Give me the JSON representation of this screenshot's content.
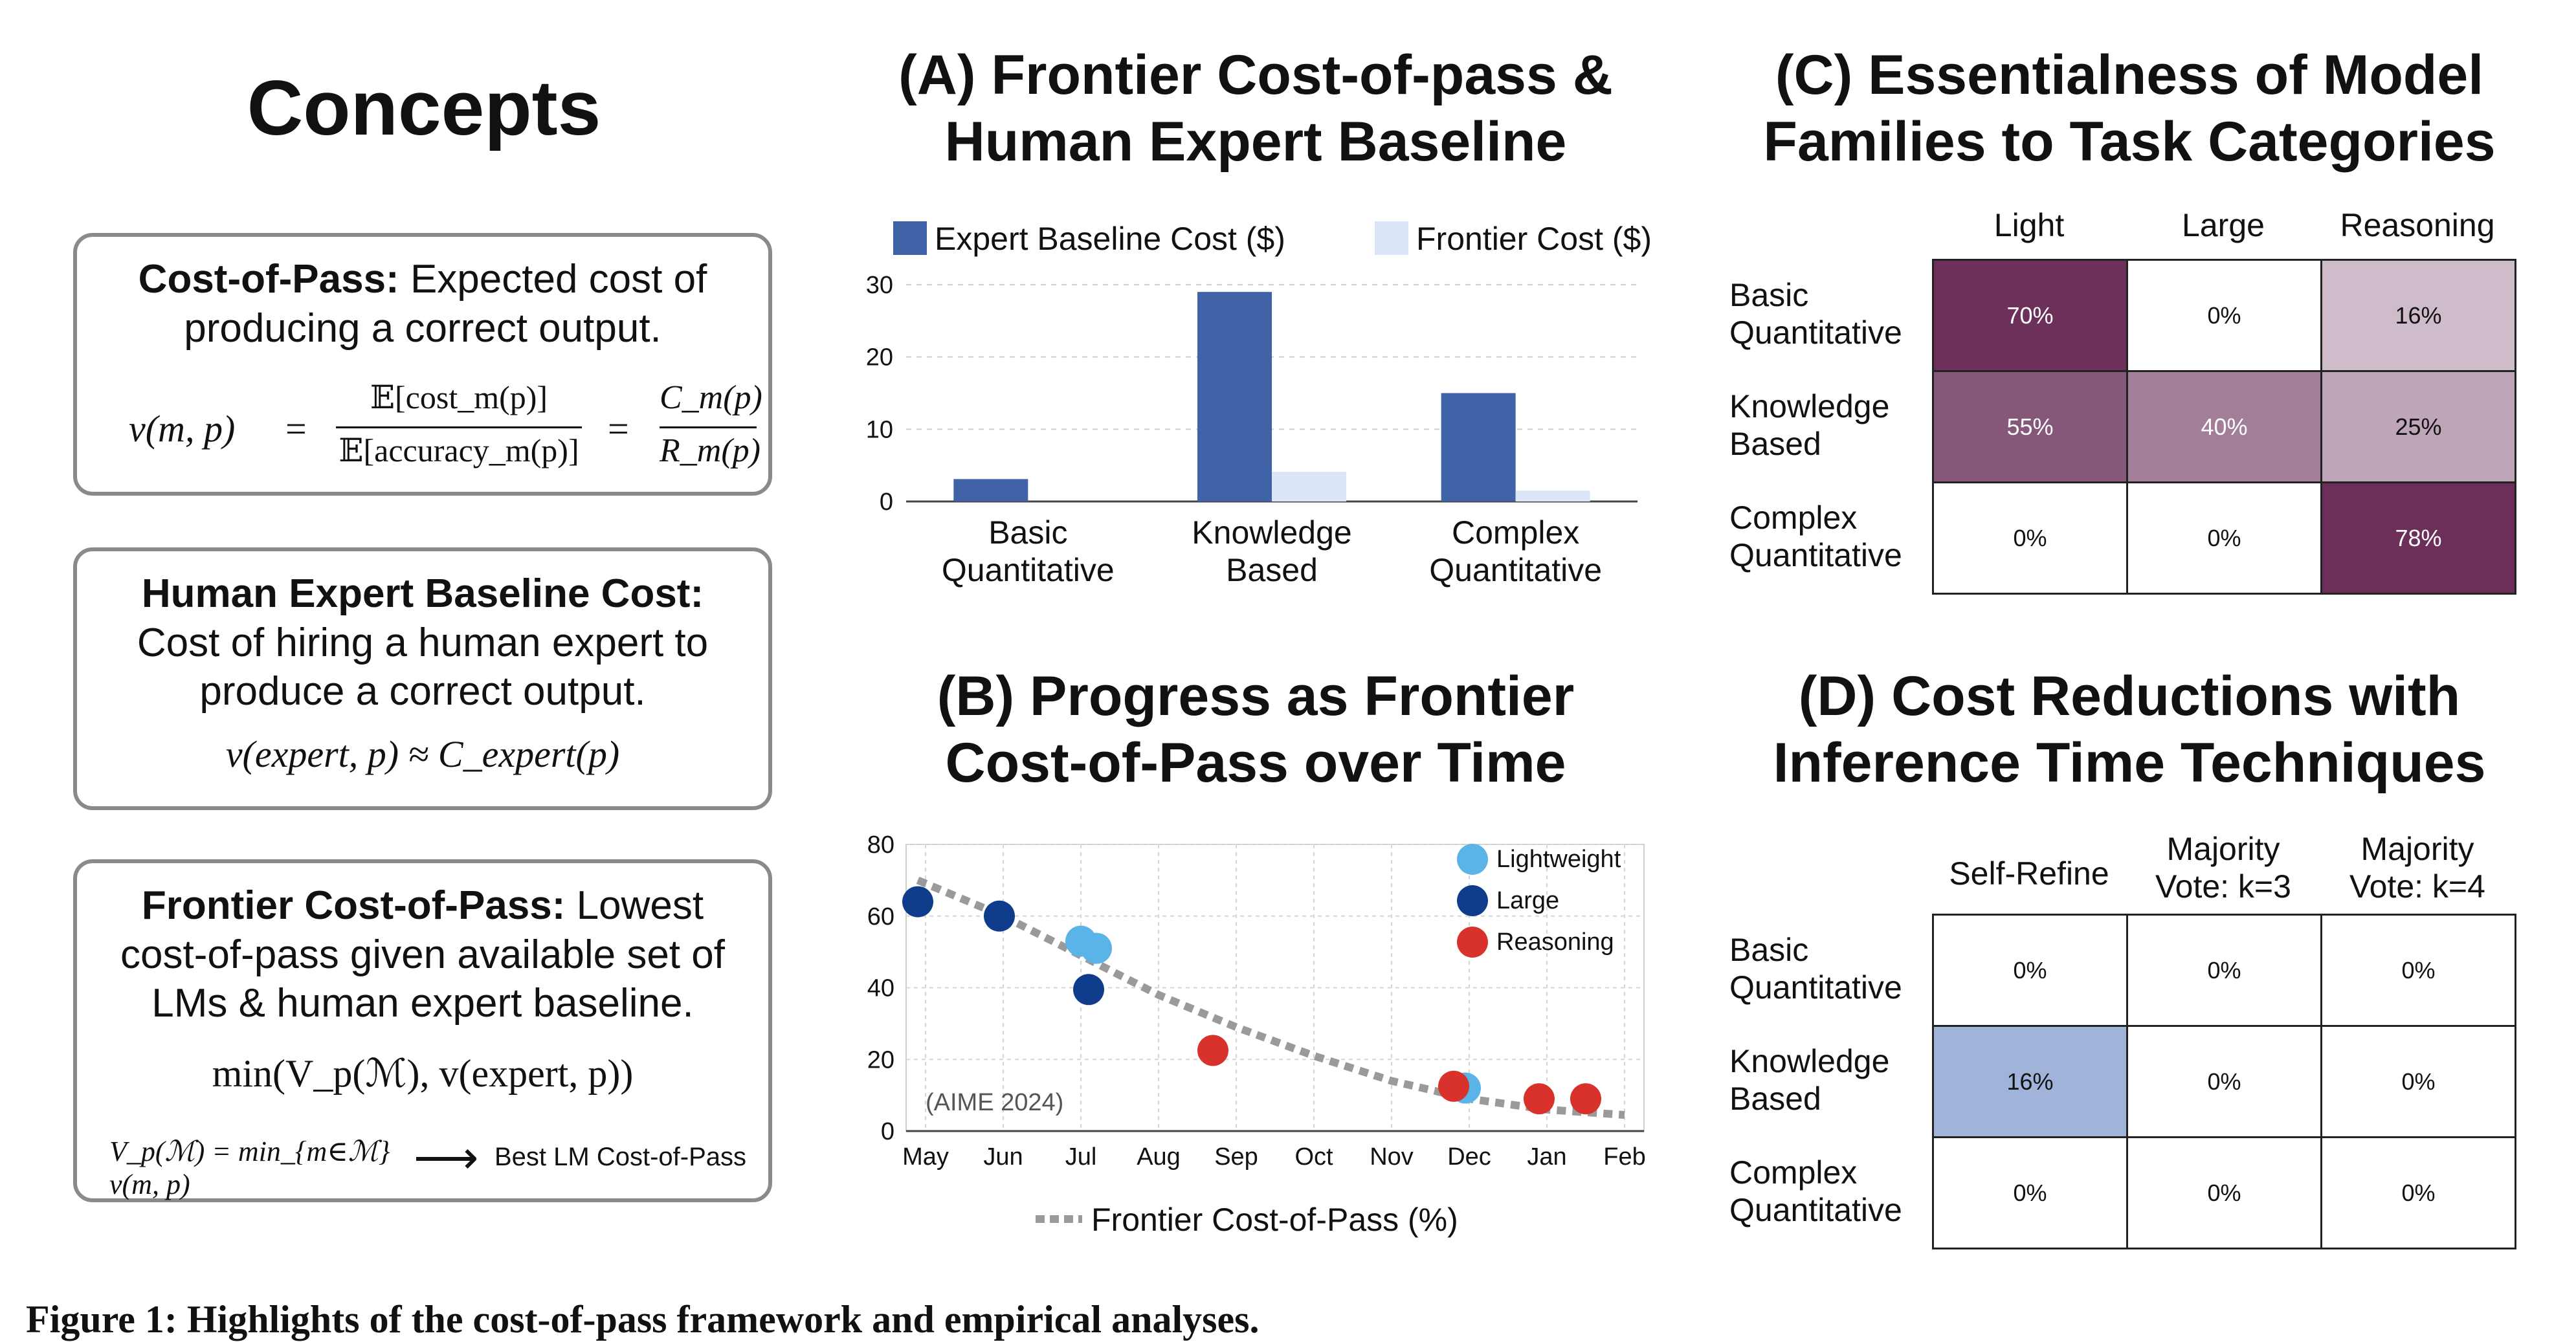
{
  "concepts": {
    "title": "Concepts",
    "box1": {
      "heading": "Cost-of-Pass:",
      "text": "Expected cost of producing a correct output.",
      "lhs": "v(m, p)",
      "num1": "𝔼[cost_m(p)]",
      "den1": "𝔼[accuracy_m(p)]",
      "num2": "C_m(p)",
      "den2": "R_m(p)"
    },
    "box2": {
      "heading": "Human Expert Baseline Cost:",
      "text": "Cost of hiring a human expert to produce a correct output.",
      "formula": "v(expert, p) ≈ C_expert(p)"
    },
    "box3": {
      "heading": "Frontier Cost-of-Pass:",
      "text": "Lowest cost-of-pass given available set of LMs & human expert baseline.",
      "formula": "min(V_p(ℳ), v(expert, p))",
      "def": "V_p(ℳ) = min_{m∈ℳ} v(m, p)",
      "arrow_label": "Best LM Cost-of-Pass"
    }
  },
  "panelA": {
    "title_line1": "(A) Frontier Cost-of-pass &",
    "title_line2": "Human Expert Baseline"
  },
  "panelB": {
    "title_line1": "(B) Progress as Frontier",
    "title_line2": "Cost-of-Pass over Time"
  },
  "panelC": {
    "title_line1": "(C) Essentialness of Model",
    "title_line2": "Families to Task Categories",
    "columns": [
      "Light",
      "Large",
      "Reasoning"
    ],
    "rows": [
      {
        "label_line1": "Basic",
        "label_line2": "Quantitative",
        "cells": [
          "70%",
          "0%",
          "16%"
        ],
        "values": [
          70,
          0,
          16
        ]
      },
      {
        "label_line1": "Knowledge",
        "label_line2": "Based",
        "cells": [
          "55%",
          "40%",
          "25%"
        ],
        "values": [
          55,
          40,
          25
        ]
      },
      {
        "label_line1": "Complex",
        "label_line2": "Quantitative",
        "cells": [
          "0%",
          "0%",
          "78%"
        ],
        "values": [
          0,
          0,
          78
        ]
      }
    ],
    "color": "#6b2f5a"
  },
  "panelD": {
    "title_line1": "(D) Cost Reductions with",
    "title_line2": "Inference Time Techniques",
    "columns": [
      {
        "line1": "Self-Refine",
        "line2": ""
      },
      {
        "line1": "Majority",
        "line2": "Vote: k=3"
      },
      {
        "line1": "Majority",
        "line2": "Vote: k=4"
      }
    ],
    "rows": [
      {
        "label_line1": "Basic",
        "label_line2": "Quantitative",
        "cells": [
          "0%",
          "0%",
          "0%"
        ],
        "values": [
          0,
          0,
          0
        ]
      },
      {
        "label_line1": "Knowledge",
        "label_line2": "Based",
        "cells": [
          "16%",
          "0%",
          "0%"
        ],
        "values": [
          16,
          0,
          0
        ]
      },
      {
        "label_line1": "Complex",
        "label_line2": "Quantitative",
        "cells": [
          "0%",
          "0%",
          "0%"
        ],
        "values": [
          0,
          0,
          0
        ]
      }
    ],
    "color": "#9fb4d8"
  },
  "caption": "Figure 1: Highlights of the cost-of-pass framework and empirical analyses.",
  "chart_data": [
    {
      "type": "bar",
      "categories": [
        "Basic\nQuantitative",
        "Knowledge\nBased",
        "Complex\nQuantitative"
      ],
      "series": [
        {
          "name": "Expert Baseline Cost ($)",
          "values": [
            3.1,
            29,
            15
          ],
          "color": "#3f63a6"
        },
        {
          "name": "Frontier Cost ($)",
          "values": [
            0,
            4.1,
            1.5
          ],
          "color": "#dbe5f7"
        }
      ],
      "ylim": [
        0,
        30
      ],
      "yticks": [
        0,
        10,
        20,
        30
      ],
      "grid": true,
      "legend": "top"
    },
    {
      "type": "scatter",
      "x_ticks": [
        "May",
        "Jun",
        "Jul",
        "Aug",
        "Sep",
        "Oct",
        "Nov",
        "Dec",
        "Jan",
        "Feb"
      ],
      "ylim": [
        0,
        80
      ],
      "yticks": [
        0,
        20,
        40,
        60,
        80
      ],
      "annotation": "(AIME 2024)",
      "series": [
        {
          "name": "Lightweight",
          "color": "#5ab4e8",
          "points": [
            [
              2.0,
              53
            ],
            [
              2.2,
              51
            ],
            [
              6.95,
              12
            ]
          ]
        },
        {
          "name": "Large",
          "color": "#0f3d8c",
          "points": [
            [
              -0.1,
              64
            ],
            [
              0.95,
              60
            ],
            [
              2.1,
              39.5
            ]
          ]
        },
        {
          "name": "Reasoning",
          "color": "#d9312b",
          "points": [
            [
              3.7,
              22.5
            ],
            [
              6.8,
              12.5
            ],
            [
              7.9,
              9
            ],
            [
              8.5,
              9
            ]
          ]
        }
      ],
      "trend": {
        "name": "Frontier Cost-of-Pass (%)",
        "points": [
          [
            -0.1,
            70
          ],
          [
            1,
            60
          ],
          [
            2,
            49
          ],
          [
            3,
            38
          ],
          [
            4,
            29
          ],
          [
            5,
            21
          ],
          [
            6,
            14
          ],
          [
            7,
            9
          ],
          [
            8,
            6
          ],
          [
            9,
            4.5
          ]
        ],
        "color": "#9a9a9a"
      },
      "grid": true,
      "legend": "top-right"
    }
  ]
}
